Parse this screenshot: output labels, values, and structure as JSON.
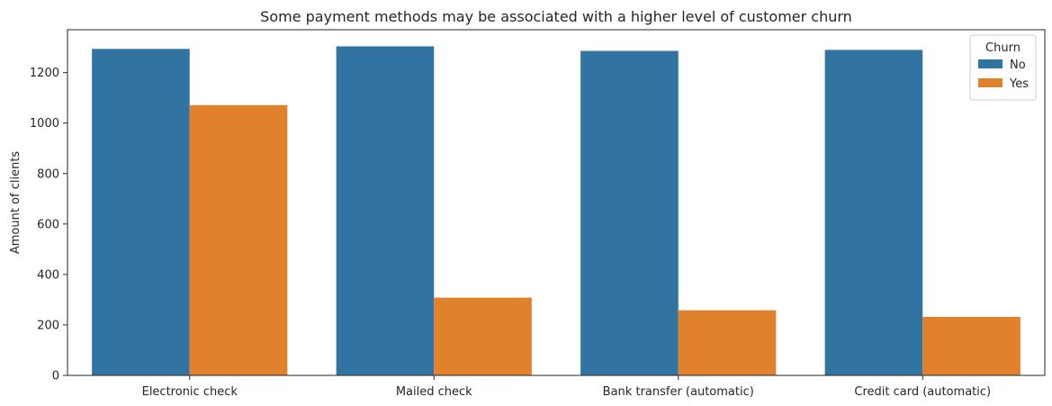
{
  "chart_data": {
    "type": "bar",
    "title": "Some payment methods may be associated with a higher level of customer churn",
    "xlabel": "",
    "ylabel": "Amount of clients",
    "categories": [
      "Electronic check",
      "Mailed check",
      "Bank transfer (automatic)",
      "Credit card (automatic)"
    ],
    "series": [
      {
        "name": "No",
        "color": "#3274a1",
        "values": [
          1294,
          1304,
          1286,
          1290
        ]
      },
      {
        "name": "Yes",
        "color": "#e1812c",
        "values": [
          1071,
          308,
          258,
          232
        ]
      }
    ],
    "ylim": [
      0,
      1370
    ],
    "yticks": [
      0,
      200,
      400,
      600,
      800,
      1000,
      1200
    ],
    "legend": {
      "title": "Churn",
      "position": "top-right"
    },
    "grid": false
  }
}
